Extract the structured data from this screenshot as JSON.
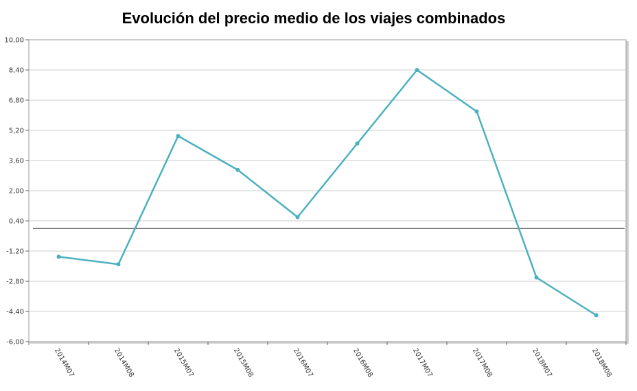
{
  "chart_data": {
    "type": "line",
    "title": "Evolución del precio medio de los viajes combinados",
    "categories": [
      "2014M07",
      "2014M08",
      "2015M07",
      "2015M08",
      "2016M07",
      "2016M08",
      "2017M07",
      "2017M08",
      "2018M07",
      "2018M08"
    ],
    "series": [
      {
        "values": [
          -1.5,
          -1.9,
          4.9,
          3.1,
          0.6,
          4.5,
          8.4,
          6.2,
          -2.6,
          -4.6
        ]
      }
    ],
    "yticks": [
      "10,00",
      "8,40",
      "6,80",
      "5,20",
      "3,60",
      "2,00",
      "0,40",
      "-1,20",
      "-2,80",
      "-4,40",
      "-6,00"
    ],
    "ylim": [
      -6.0,
      10.0
    ],
    "reference_line": 0,
    "grid": true,
    "colors": {
      "series": "#4bb0c0",
      "grid": "#cccccc",
      "reference": "#000000"
    }
  }
}
